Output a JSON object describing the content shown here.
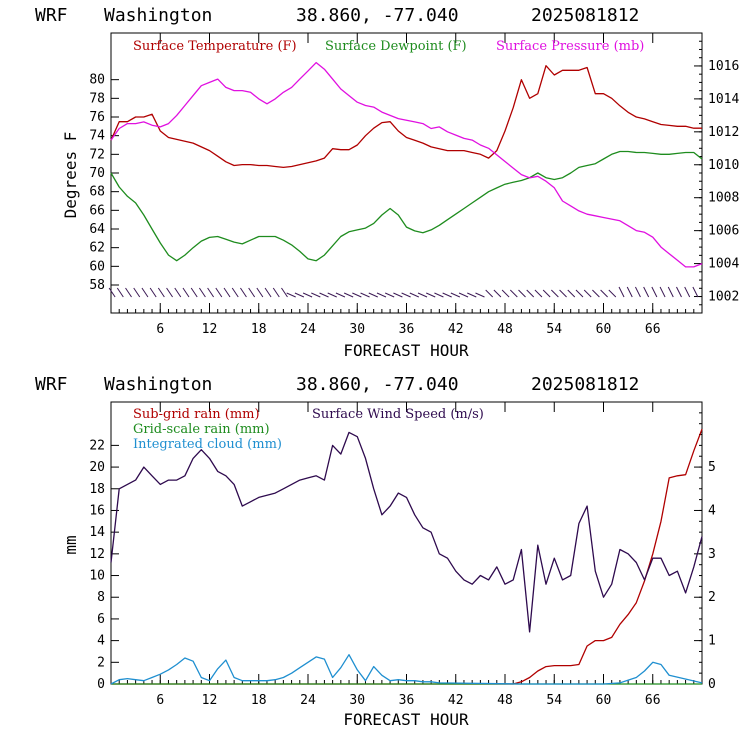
{
  "colors": {
    "temperature": "#b00000",
    "dewpoint": "#1e8c1e",
    "pressure": "#e010e0",
    "wind_barbs": "#3c1a55",
    "subgrid_rain": "#b00000",
    "gridscale_rain": "#1e8c1e",
    "cloud": "#1f8fd0",
    "wind_speed": "#2e0a4e"
  },
  "chart_data": [
    {
      "type": "line",
      "header": {
        "model": "WRF",
        "location": "Washington",
        "coords": "38.860, -77.040",
        "run": "2025081812"
      },
      "xlabel": "FORECAST HOUR",
      "ylabel": "Degrees F",
      "xlim": [
        0,
        72
      ],
      "ylim": [
        55,
        85
      ],
      "y2lim": [
        1001,
        1018
      ],
      "xticks": [
        "6",
        "12",
        "18",
        "24",
        "30",
        "36",
        "42",
        "48",
        "54",
        "60",
        "66"
      ],
      "yticks": [
        "58",
        "60",
        "62",
        "64",
        "66",
        "68",
        "70",
        "72",
        "74",
        "76",
        "78",
        "80"
      ],
      "y2ticks": [
        "1002",
        "1004",
        "1006",
        "1008",
        "1010",
        "1012",
        "1014",
        "1016"
      ],
      "legend": [
        "Surface Temperature (F)",
        "Surface Dewpoint (F)",
        "Surface Pressure (mb)"
      ],
      "wind_barbs_row": true,
      "series": [
        {
          "name": "Surface Temperature (F)",
          "axis": "left",
          "x": [
            0,
            1,
            2,
            3,
            4,
            5,
            6,
            7,
            8,
            9,
            10,
            11,
            12,
            13,
            14,
            15,
            16,
            17,
            18,
            19,
            20,
            21,
            22,
            23,
            24,
            25,
            26,
            27,
            28,
            29,
            30,
            31,
            32,
            33,
            34,
            35,
            36,
            37,
            38,
            39,
            40,
            41,
            42,
            43,
            44,
            45,
            46,
            47,
            48,
            49,
            50,
            51,
            52,
            53,
            54,
            55,
            56,
            57,
            58,
            59,
            60,
            61,
            62,
            63,
            64,
            65,
            66,
            67,
            68,
            69,
            70,
            71,
            72
          ],
          "y": [
            73.5,
            75.5,
            75.5,
            76,
            76,
            76.3,
            74.5,
            73.8,
            73.6,
            73.4,
            73.2,
            72.8,
            72.4,
            71.8,
            71.2,
            70.8,
            70.9,
            70.9,
            70.8,
            70.8,
            70.7,
            70.6,
            70.7,
            70.9,
            71.1,
            71.3,
            71.6,
            72.6,
            72.5,
            72.5,
            73,
            74,
            74.8,
            75.4,
            75.5,
            74.5,
            73.8,
            73.5,
            73.2,
            72.8,
            72.6,
            72.4,
            72.4,
            72.4,
            72.2,
            72,
            71.6,
            72.4,
            74.5,
            77,
            80,
            78,
            78.5,
            81.5,
            80.5,
            81,
            81,
            81,
            81.3,
            78.5,
            78.5,
            78,
            77.2,
            76.5,
            76,
            75.8,
            75.5,
            75.2,
            75.1,
            75,
            75,
            74.8,
            74.8
          ]
        },
        {
          "name": "Surface Dewpoint (F)",
          "axis": "left",
          "x": [
            0,
            1,
            2,
            3,
            4,
            5,
            6,
            7,
            8,
            9,
            10,
            11,
            12,
            13,
            14,
            15,
            16,
            17,
            18,
            19,
            20,
            21,
            22,
            23,
            24,
            25,
            26,
            27,
            28,
            29,
            30,
            31,
            32,
            33,
            34,
            35,
            36,
            37,
            38,
            39,
            40,
            41,
            42,
            43,
            44,
            45,
            46,
            47,
            48,
            49,
            50,
            51,
            52,
            53,
            54,
            55,
            56,
            57,
            58,
            59,
            60,
            61,
            62,
            63,
            64,
            65,
            66,
            67,
            68,
            69,
            70,
            71,
            72
          ],
          "y": [
            70,
            68.5,
            67.5,
            66.8,
            65.5,
            64,
            62.5,
            61.2,
            60.6,
            61.2,
            62,
            62.7,
            63.1,
            63.2,
            62.9,
            62.6,
            62.4,
            62.8,
            63.2,
            63.2,
            63.2,
            62.8,
            62.3,
            61.6,
            60.8,
            60.6,
            61.2,
            62.2,
            63.2,
            63.7,
            63.9,
            64.1,
            64.6,
            65.5,
            66.2,
            65.5,
            64.2,
            63.8,
            63.6,
            63.9,
            64.4,
            65,
            65.6,
            66.2,
            66.8,
            67.4,
            68,
            68.4,
            68.8,
            69,
            69.2,
            69.5,
            70,
            69.5,
            69.3,
            69.5,
            70,
            70.6,
            70.8,
            71,
            71.5,
            72,
            72.3,
            72.3,
            72.2,
            72.2,
            72.1,
            72,
            72,
            72.1,
            72.2,
            72.2,
            71.5
          ]
        },
        {
          "name": "Surface Pressure (mb)",
          "axis": "right",
          "x": [
            0,
            1,
            2,
            3,
            4,
            5,
            6,
            7,
            8,
            9,
            10,
            11,
            12,
            13,
            14,
            15,
            16,
            17,
            18,
            19,
            20,
            21,
            22,
            23,
            24,
            25,
            26,
            27,
            28,
            29,
            30,
            31,
            32,
            33,
            34,
            35,
            36,
            37,
            38,
            39,
            40,
            41,
            42,
            43,
            44,
            45,
            46,
            47,
            48,
            49,
            50,
            51,
            52,
            53,
            54,
            55,
            56,
            57,
            58,
            59,
            60,
            61,
            62,
            63,
            64,
            65,
            66,
            67,
            68,
            69,
            70,
            71,
            72
          ],
          "y": [
            1011.5,
            1012.2,
            1012.5,
            1012.5,
            1012.6,
            1012.4,
            1012.3,
            1012.5,
            1013,
            1013.6,
            1014.2,
            1014.8,
            1015,
            1015.2,
            1014.7,
            1014.5,
            1014.5,
            1014.4,
            1014,
            1013.7,
            1014,
            1014.4,
            1014.7,
            1015.2,
            1015.7,
            1016.2,
            1015.8,
            1015.2,
            1014.6,
            1014.2,
            1013.8,
            1013.6,
            1013.5,
            1013.2,
            1013,
            1012.8,
            1012.7,
            1012.6,
            1012.5,
            1012.2,
            1012.3,
            1012,
            1011.8,
            1011.6,
            1011.5,
            1011.2,
            1011,
            1010.6,
            1010.2,
            1009.8,
            1009.4,
            1009.2,
            1009.3,
            1009,
            1008.6,
            1007.8,
            1007.5,
            1007.2,
            1007,
            1006.9,
            1006.8,
            1006.7,
            1006.6,
            1006.3,
            1006,
            1005.9,
            1005.6,
            1005,
            1004.6,
            1004.2,
            1003.8,
            1003.8,
            1004
          ]
        }
      ]
    },
    {
      "type": "line",
      "header": {
        "model": "WRF",
        "location": "Washington",
        "coords": "38.860, -77.040",
        "run": "2025081812"
      },
      "xlabel": "FORECAST HOUR",
      "ylabel": "mm",
      "xlim": [
        0,
        72
      ],
      "ylim": [
        0,
        26
      ],
      "y2lim": [
        0,
        6.5
      ],
      "xticks": [
        "6",
        "12",
        "18",
        "24",
        "30",
        "36",
        "42",
        "48",
        "54",
        "60",
        "66"
      ],
      "yticks": [
        "0",
        "2",
        "4",
        "6",
        "8",
        "10",
        "12",
        "14",
        "16",
        "18",
        "20",
        "22"
      ],
      "y2ticks": [
        "0",
        "1",
        "2",
        "3",
        "4",
        "5"
      ],
      "legend": [
        "Sub-grid rain (mm)",
        "Grid-scale rain (mm)",
        "Integrated cloud (mm)",
        "Surface Wind Speed (m/s)"
      ],
      "series": [
        {
          "name": "Sub-grid rain (mm)",
          "axis": "left",
          "x": [
            0,
            49,
            50,
            51,
            52,
            53,
            54,
            55,
            56,
            57,
            58,
            59,
            60,
            61,
            62,
            63,
            64,
            65,
            66,
            67,
            68,
            69,
            70,
            71,
            72
          ],
          "y": [
            0,
            0,
            0.2,
            0.6,
            1.2,
            1.6,
            1.7,
            1.7,
            1.7,
            1.8,
            3.5,
            4,
            4,
            4.3,
            5.5,
            6.4,
            7.5,
            9.5,
            12,
            15,
            19,
            19.2,
            19.3,
            21.5,
            23.5
          ]
        },
        {
          "name": "Grid-scale rain (mm)",
          "axis": "left",
          "x": [
            0,
            72
          ],
          "y": [
            0,
            0
          ]
        },
        {
          "name": "Integrated cloud (mm)",
          "axis": "left",
          "x": [
            0,
            1,
            2,
            3,
            4,
            5,
            6,
            7,
            8,
            9,
            10,
            11,
            12,
            13,
            14,
            15,
            16,
            17,
            18,
            19,
            20,
            21,
            22,
            23,
            24,
            25,
            26,
            27,
            28,
            29,
            30,
            31,
            32,
            33,
            34,
            35,
            36,
            37,
            38,
            39,
            40,
            50,
            60,
            62,
            64,
            65,
            66,
            67,
            68,
            72
          ],
          "y": [
            0,
            0.4,
            0.5,
            0.4,
            0.3,
            0.6,
            0.9,
            1.3,
            1.8,
            2.4,
            2.1,
            0.6,
            0.3,
            1.4,
            2.2,
            0.6,
            0.3,
            0.3,
            0.3,
            0.3,
            0.4,
            0.6,
            1,
            1.5,
            2,
            2.5,
            2.3,
            0.6,
            1.5,
            2.7,
            1.3,
            0.3,
            1.6,
            0.8,
            0.3,
            0.4,
            0.3,
            0.3,
            0.2,
            0.2,
            0.1,
            0,
            0,
            0.1,
            0.6,
            1.2,
            2,
            1.8,
            0.8,
            0.1
          ]
        },
        {
          "name": "Surface Wind Speed (m/s)",
          "axis": "right",
          "x": [
            0,
            1,
            2,
            3,
            4,
            5,
            6,
            7,
            8,
            9,
            10,
            11,
            12,
            13,
            14,
            15,
            16,
            17,
            18,
            19,
            20,
            21,
            22,
            23,
            24,
            25,
            26,
            27,
            28,
            29,
            30,
            31,
            32,
            33,
            34,
            35,
            36,
            37,
            38,
            39,
            40,
            41,
            42,
            43,
            44,
            45,
            46,
            47,
            48,
            49,
            50,
            51,
            52,
            53,
            54,
            55,
            56,
            57,
            58,
            59,
            60,
            61,
            62,
            63,
            64,
            65,
            66,
            67,
            68,
            69,
            70,
            71,
            72
          ],
          "y": [
            2.8,
            4.5,
            4.6,
            4.7,
            5,
            4.8,
            4.6,
            4.7,
            4.7,
            4.8,
            5.2,
            5.4,
            5.2,
            4.9,
            4.8,
            4.6,
            4.1,
            4.2,
            4.3,
            4.35,
            4.4,
            4.5,
            4.6,
            4.7,
            4.75,
            4.8,
            4.7,
            5.5,
            5.3,
            5.8,
            5.7,
            5.2,
            4.5,
            3.9,
            4.1,
            4.4,
            4.3,
            3.9,
            3.6,
            3.5,
            3.0,
            2.9,
            2.6,
            2.4,
            2.3,
            2.5,
            2.4,
            2.7,
            2.3,
            2.4,
            3.1,
            1.2,
            3.2,
            2.3,
            2.9,
            2.4,
            2.5,
            3.7,
            4.1,
            2.6,
            2.0,
            2.3,
            3.1,
            3.0,
            2.8,
            2.4,
            2.9,
            2.9,
            2.5,
            2.6,
            2.1,
            2.7,
            3.4
          ]
        }
      ]
    }
  ]
}
